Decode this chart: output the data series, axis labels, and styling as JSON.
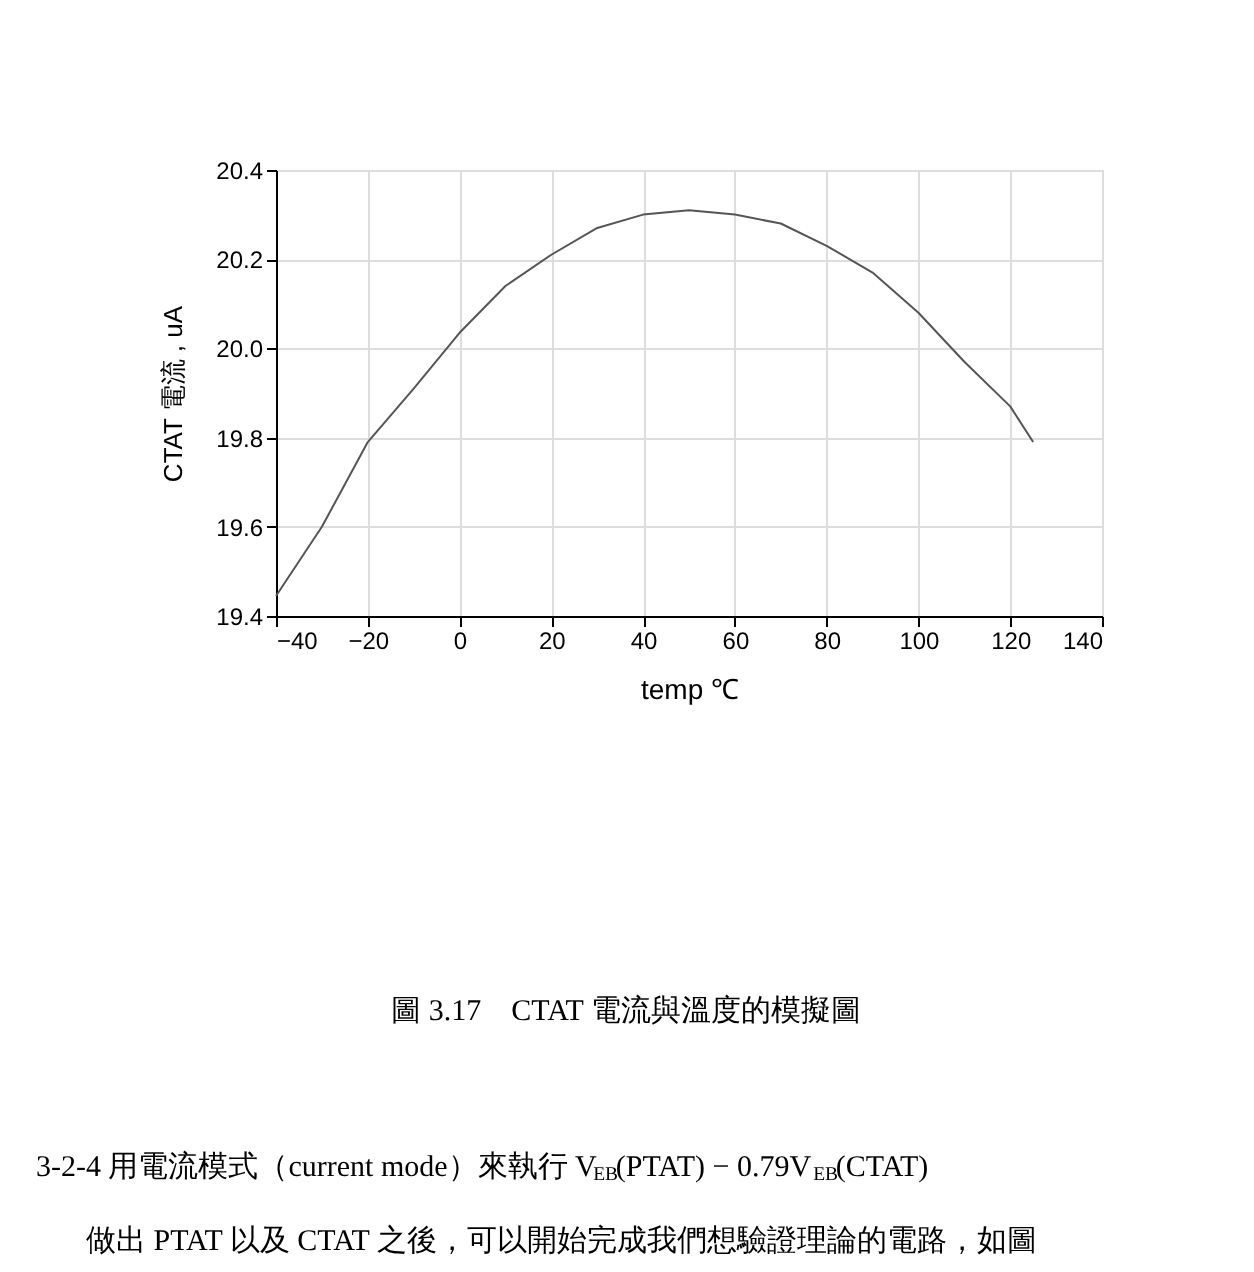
{
  "chart_data": {
    "type": "line",
    "xlabel": "temp ℃",
    "ylabel": "CTAT 電流 , uA",
    "x": [
      -40,
      -30,
      -20,
      -10,
      0,
      10,
      20,
      30,
      40,
      50,
      60,
      70,
      80,
      90,
      100,
      110,
      120,
      125
    ],
    "series": [
      {
        "color": "#555555",
        "values": [
          19.445,
          19.6,
          19.79,
          19.91,
          20.035,
          20.14,
          20.21,
          20.27,
          20.3,
          20.31,
          20.3,
          20.28,
          20.23,
          20.17,
          20.08,
          19.97,
          19.87,
          19.79
        ]
      }
    ],
    "xlim": [
      -40,
      140
    ],
    "xticks": [
      -40,
      -20,
      0,
      20,
      40,
      60,
      80,
      100,
      120,
      140
    ],
    "ylim": [
      19.4,
      20.4
    ],
    "yticks": [
      {
        "value": 19.4,
        "label": "19.4"
      },
      {
        "value": 19.6,
        "label": "19.6"
      },
      {
        "value": 19.8,
        "label": "19.8"
      },
      {
        "value": 20.0,
        "label": "20.0"
      },
      {
        "value": 20.2,
        "label": "20.2"
      },
      {
        "value": 20.4,
        "label": "20.4"
      }
    ],
    "grid": true,
    "marker": "none",
    "line_style": "solid",
    "annotations": [
      "圖 3.17　CTAT 電流與溫度的模擬圖",
      "3-2-4 用電流模式（current mode）來執行 V$_{EB}$(PTAT) − 0.79V$_{EB}$(CTAT)",
      "做出 PTAT 以及 CTAT 之後，可以開始完成我們想驗證理論的電路，如圖"
    ]
  }
}
